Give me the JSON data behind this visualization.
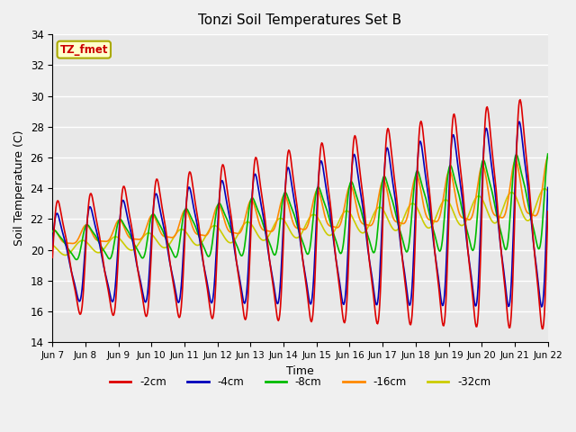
{
  "title": "Tonzi Soil Temperatures Set B",
  "xlabel": "Time",
  "ylabel": "Soil Temperature (C)",
  "ylim": [
    14,
    34
  ],
  "xtick_labels": [
    "Jun 7",
    "Jun 8",
    "Jun 9",
    "Jun 10",
    "Jun 11",
    "Jun 12",
    "Jun 13",
    "Jun 14",
    "Jun 15",
    "Jun 16",
    "Jun 17",
    "Jun 18",
    "Jun 19",
    "Jun 20",
    "Jun 21",
    "Jun 22"
  ],
  "ytick_values": [
    14,
    16,
    18,
    20,
    22,
    24,
    26,
    28,
    30,
    32,
    34
  ],
  "legend_labels": [
    "-2cm",
    "-4cm",
    "-8cm",
    "-16cm",
    "-32cm"
  ],
  "legend_colors": [
    "#dd0000",
    "#0000bb",
    "#00bb00",
    "#ff8800",
    "#cccc00"
  ],
  "annotation_text": "TZ_fmet",
  "annotation_color": "#cc0000",
  "annotation_bg": "#ffffcc",
  "annotation_border": "#aaaa00",
  "bg_color": "#e8e8e8",
  "grid_color": "#ffffff",
  "fig_bg": "#f0f0f0"
}
